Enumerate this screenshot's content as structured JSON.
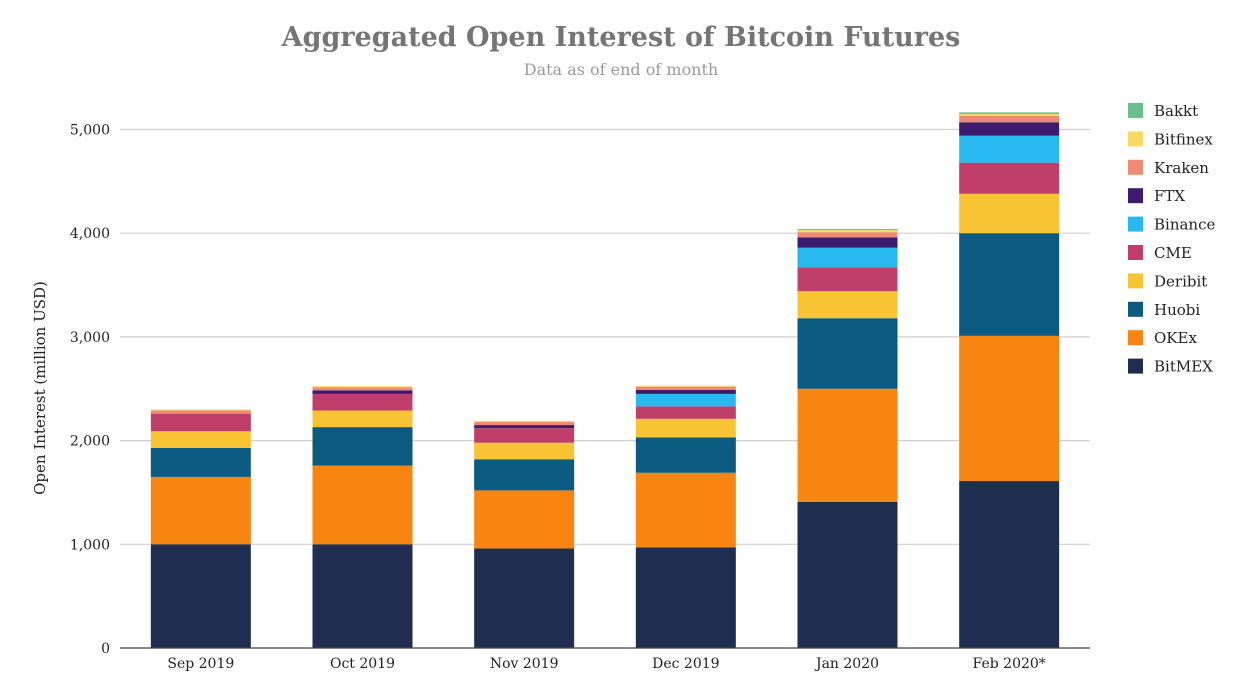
{
  "chart_data": {
    "type": "bar",
    "stacked": true,
    "title": "Aggregated Open Interest of Bitcoin Futures",
    "subtitle": "Data as of end of month",
    "xlabel": "",
    "ylabel": "Open Interest (million USD)",
    "ylim": [
      0,
      5200
    ],
    "yticks": [
      0,
      1000,
      2000,
      3000,
      4000,
      5000
    ],
    "ytick_labels": [
      "0",
      "1,000",
      "2,000",
      "3,000",
      "4,000",
      "5,000"
    ],
    "grid": true,
    "legend_position": "right",
    "categories": [
      "Sep 2019",
      "Oct 2019",
      "Nov 2019",
      "Dec 2019",
      "Jan 2020",
      "Feb 2020*"
    ],
    "series": [
      {
        "name": "BitMEX",
        "color": "#1f2d50",
        "values": [
          1000,
          1000,
          960,
          970,
          1410,
          1610
        ]
      },
      {
        "name": "OKEx",
        "color": "#f7850f",
        "values": [
          650,
          760,
          560,
          720,
          1090,
          1400
        ]
      },
      {
        "name": "Huobi",
        "color": "#0b5a80",
        "values": [
          280,
          370,
          300,
          340,
          680,
          990
        ]
      },
      {
        "name": "Deribit",
        "color": "#f9c433",
        "values": [
          160,
          160,
          160,
          180,
          260,
          380
        ]
      },
      {
        "name": "CME",
        "color": "#bf3f6a",
        "values": [
          170,
          160,
          140,
          120,
          230,
          300
        ]
      },
      {
        "name": "Binance",
        "color": "#27b8f0",
        "values": [
          0,
          0,
          0,
          120,
          190,
          260
        ]
      },
      {
        "name": "FTX",
        "color": "#3e1b6e",
        "values": [
          0,
          35,
          30,
          40,
          100,
          130
        ]
      },
      {
        "name": "Kraken",
        "color": "#ee8a73",
        "values": [
          30,
          30,
          30,
          30,
          50,
          60
        ]
      },
      {
        "name": "Bitfinex",
        "color": "#fbd866",
        "values": [
          10,
          10,
          10,
          10,
          20,
          20
        ]
      },
      {
        "name": "Bakkt",
        "color": "#6abf8c",
        "values": [
          0,
          0,
          0,
          0,
          10,
          15
        ]
      }
    ],
    "legend_order": [
      "Bakkt",
      "Bitfinex",
      "Kraken",
      "FTX",
      "Binance",
      "CME",
      "Deribit",
      "Huobi",
      "OKEx",
      "BitMEX"
    ]
  }
}
